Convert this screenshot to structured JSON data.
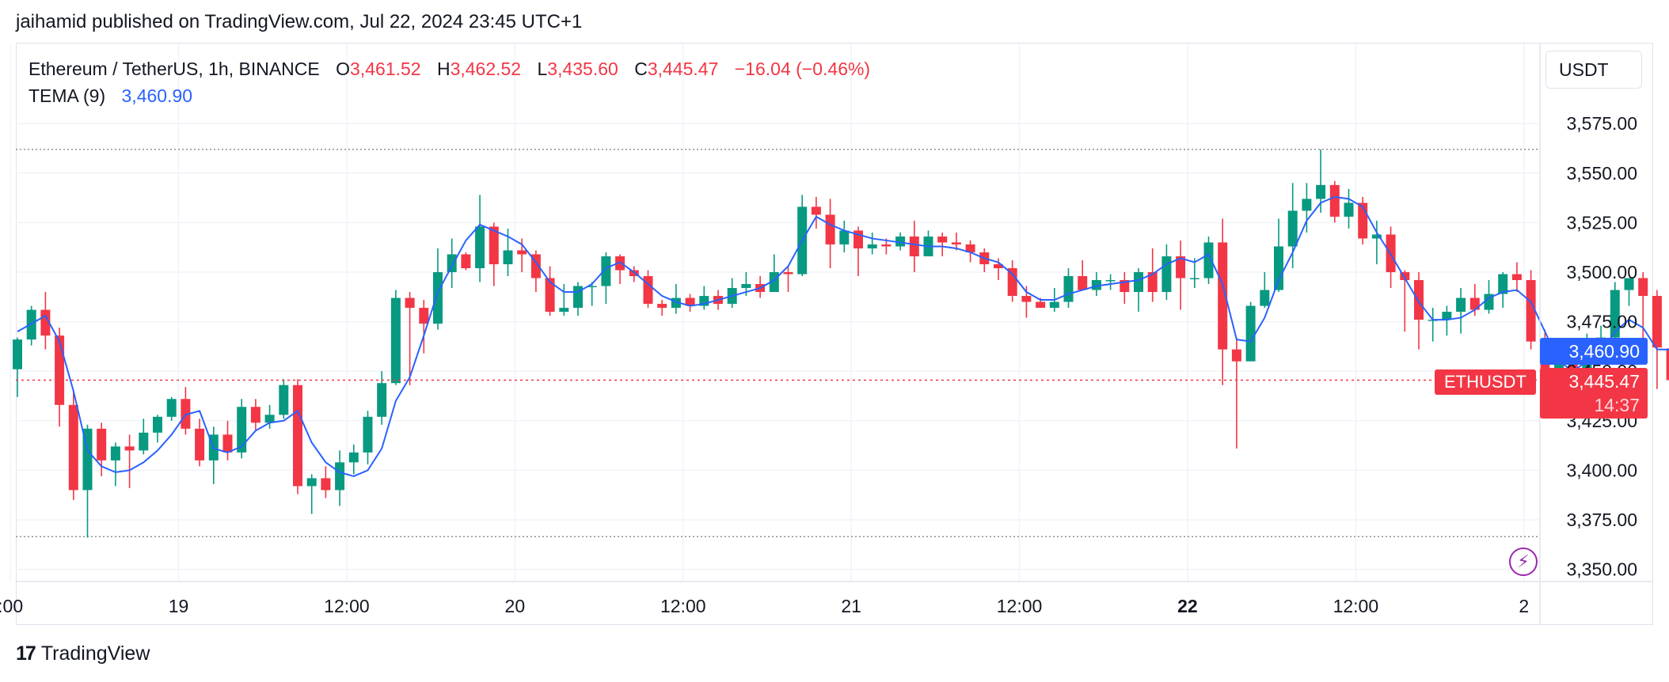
{
  "publisher_line": "jaihamid published on TradingView.com, Jul 22, 2024 23:45 UTC+1",
  "legend": {
    "symbol": "Ethereum / TetherUS, 1h, BINANCE",
    "o_label": "O",
    "o_value": "3,461.52",
    "h_label": "H",
    "h_value": "3,462.52",
    "l_label": "L",
    "l_value": "3,435.60",
    "c_label": "C",
    "c_value": "3,445.47",
    "change": "−16.04 (−0.46%)",
    "indicator_name": "TEMA (9)",
    "indicator_value": "3,460.90"
  },
  "currency": "USDT",
  "tags": {
    "tema_value": "3,460.90",
    "last_price": "3,445.47",
    "countdown": "14:37",
    "symbol": "ETHUSDT"
  },
  "brand": "TradingView",
  "icons": {
    "brand_logo": "tradingview-logo-icon",
    "alert": "lightning-bolt-icon"
  },
  "colors": {
    "up": "#089981",
    "down": "#f23645",
    "tema": "#2962ff",
    "grid": "#f0f3fa"
  },
  "chart_data": {
    "type": "candlestick",
    "interval": "1h",
    "y_ticks": [
      "3,575.00",
      "3,550.00",
      "3,525.00",
      "3,500.00",
      "3,475.00",
      "3,450.00",
      "3,425.00",
      "3,400.00",
      "3,375.00",
      "3,350.00"
    ],
    "y_tick_values": [
      3575,
      3550,
      3525,
      3500,
      3475,
      3450,
      3425,
      3400,
      3375,
      3350
    ],
    "x_ticks": [
      {
        "label": ":00",
        "slot": -0.5,
        "bold": false
      },
      {
        "label": "19",
        "slot": 11.5,
        "bold": false
      },
      {
        "label": "12:00",
        "slot": 23.5,
        "bold": false
      },
      {
        "label": "20",
        "slot": 35.5,
        "bold": false
      },
      {
        "label": "12:00",
        "slot": 47.5,
        "bold": false
      },
      {
        "label": "21",
        "slot": 59.5,
        "bold": false
      },
      {
        "label": "12:00",
        "slot": 71.5,
        "bold": false
      },
      {
        "label": "22",
        "slot": 83.5,
        "bold": true
      },
      {
        "label": "12:00",
        "slot": 95.5,
        "bold": false
      },
      {
        "label": "2",
        "slot": 107.5,
        "bold": false
      }
    ],
    "high_line": 3562,
    "low_line": 3366.5,
    "last_price": 3445.47,
    "tema_last": 3460.9,
    "candles": [
      [
        3451,
        3466,
        3437,
        3467
      ],
      [
        3466,
        3481,
        3463,
        3483
      ],
      [
        3481,
        3468,
        3461,
        3490
      ],
      [
        3468,
        3433,
        3422,
        3472
      ],
      [
        3433,
        3390,
        3385,
        3440
      ],
      [
        3390,
        3421,
        3366,
        3423
      ],
      [
        3421,
        3405,
        3397,
        3424
      ],
      [
        3405,
        3412,
        3392,
        3414
      ],
      [
        3412,
        3410,
        3391,
        3418
      ],
      [
        3410,
        3419,
        3408,
        3426
      ],
      [
        3419,
        3427,
        3414,
        3428
      ],
      [
        3427,
        3436,
        3425,
        3437
      ],
      [
        3436,
        3421,
        3418,
        3442
      ],
      [
        3421,
        3405,
        3402,
        3426
      ],
      [
        3405,
        3418,
        3393,
        3422
      ],
      [
        3418,
        3409,
        3405,
        3425
      ],
      [
        3409,
        3432,
        3406,
        3436
      ],
      [
        3432,
        3424,
        3420,
        3436
      ],
      [
        3424,
        3428,
        3421,
        3433
      ],
      [
        3428,
        3443,
        3426,
        3446
      ],
      [
        3443,
        3392,
        3388,
        3446
      ],
      [
        3392,
        3396,
        3378,
        3398
      ],
      [
        3396,
        3390,
        3386,
        3402
      ],
      [
        3390,
        3404,
        3382,
        3410
      ],
      [
        3404,
        3409,
        3398,
        3413
      ],
      [
        3409,
        3427,
        3403,
        3430
      ],
      [
        3427,
        3444,
        3423,
        3450
      ],
      [
        3444,
        3487,
        3443,
        3491
      ],
      [
        3487,
        3482,
        3443,
        3490
      ],
      [
        3482,
        3474,
        3459,
        3486
      ],
      [
        3474,
        3500,
        3471,
        3512
      ],
      [
        3500,
        3509,
        3492,
        3517
      ],
      [
        3509,
        3502,
        3501,
        3510
      ],
      [
        3502,
        3523,
        3495,
        3539
      ],
      [
        3523,
        3504,
        3493,
        3525
      ],
      [
        3504,
        3511,
        3498,
        3522
      ],
      [
        3511,
        3509,
        3500,
        3517
      ],
      [
        3509,
        3497,
        3490,
        3511
      ],
      [
        3497,
        3480,
        3478,
        3503
      ],
      [
        3480,
        3482,
        3478,
        3494
      ],
      [
        3482,
        3493,
        3478,
        3495
      ],
      [
        3493,
        3493,
        3483,
        3495
      ],
      [
        3493,
        3508,
        3484,
        3510
      ],
      [
        3508,
        3501,
        3494,
        3509
      ],
      [
        3501,
        3498,
        3495,
        3503
      ],
      [
        3498,
        3484,
        3482,
        3501
      ],
      [
        3484,
        3482,
        3478,
        3486
      ],
      [
        3482,
        3487,
        3479,
        3494
      ],
      [
        3487,
        3483,
        3480,
        3489
      ],
      [
        3483,
        3488,
        3481,
        3493
      ],
      [
        3488,
        3484,
        3481,
        3491
      ],
      [
        3484,
        3492,
        3482,
        3497
      ],
      [
        3492,
        3494,
        3488,
        3500
      ],
      [
        3494,
        3490,
        3487,
        3498
      ],
      [
        3490,
        3500,
        3490,
        3509
      ],
      [
        3500,
        3499,
        3490,
        3503
      ],
      [
        3499,
        3533,
        3498,
        3539
      ],
      [
        3533,
        3529,
        3522,
        3538
      ],
      [
        3529,
        3514,
        3502,
        3537
      ],
      [
        3514,
        3521,
        3510,
        3526
      ],
      [
        3521,
        3512,
        3498,
        3523
      ],
      [
        3512,
        3514,
        3509,
        3520
      ],
      [
        3514,
        3513,
        3509,
        3517
      ],
      [
        3513,
        3518,
        3511,
        3520
      ],
      [
        3518,
        3508,
        3500,
        3526
      ],
      [
        3508,
        3518,
        3508,
        3521
      ],
      [
        3518,
        3515,
        3508,
        3520
      ],
      [
        3515,
        3514,
        3511,
        3520
      ],
      [
        3514,
        3510,
        3505,
        3516
      ],
      [
        3510,
        3504,
        3500,
        3512
      ],
      [
        3504,
        3502,
        3496,
        3507
      ],
      [
        3502,
        3488,
        3485,
        3506
      ],
      [
        3488,
        3485,
        3477,
        3493
      ],
      [
        3485,
        3482,
        3482,
        3487
      ],
      [
        3482,
        3485,
        3480,
        3492
      ],
      [
        3485,
        3498,
        3482,
        3502
      ],
      [
        3498,
        3491,
        3491,
        3506
      ],
      [
        3491,
        3496,
        3488,
        3500
      ],
      [
        3496,
        3496,
        3491,
        3499
      ],
      [
        3496,
        3490,
        3484,
        3500
      ],
      [
        3490,
        3500,
        3480,
        3502
      ],
      [
        3500,
        3490,
        3485,
        3512
      ],
      [
        3490,
        3508,
        3486,
        3514
      ],
      [
        3508,
        3497,
        3481,
        3516
      ],
      [
        3497,
        3497,
        3492,
        3507
      ],
      [
        3497,
        3515,
        3494,
        3518
      ],
      [
        3515,
        3461,
        3443,
        3527
      ],
      [
        3461,
        3455,
        3411,
        3467
      ],
      [
        3455,
        3483,
        3455,
        3485
      ],
      [
        3483,
        3491,
        3482,
        3500
      ],
      [
        3491,
        3513,
        3490,
        3527
      ],
      [
        3513,
        3531,
        3502,
        3545
      ],
      [
        3531,
        3537,
        3520,
        3545
      ],
      [
        3537,
        3544,
        3530,
        3562
      ],
      [
        3544,
        3528,
        3525,
        3546
      ],
      [
        3528,
        3535,
        3522,
        3542
      ],
      [
        3535,
        3517,
        3514,
        3538
      ],
      [
        3517,
        3519,
        3504,
        3526
      ],
      [
        3519,
        3500,
        3492,
        3523
      ],
      [
        3500,
        3496,
        3470,
        3501
      ],
      [
        3496,
        3476,
        3461,
        3500
      ],
      [
        3476,
        3476,
        3465,
        3482
      ],
      [
        3476,
        3480,
        3468,
        3483
      ],
      [
        3480,
        3487,
        3469,
        3492
      ],
      [
        3487,
        3481,
        3478,
        3494
      ],
      [
        3481,
        3489,
        3479,
        3496
      ],
      [
        3489,
        3499,
        3482,
        3500
      ],
      [
        3499,
        3496,
        3490,
        3505
      ],
      [
        3496,
        3465,
        3461,
        3501
      ],
      [
        3465,
        3446,
        3438,
        3471
      ],
      [
        3446,
        3455,
        3437,
        3458
      ],
      [
        3455,
        3446,
        3445,
        3463
      ],
      [
        3446,
        3463,
        3446,
        3469
      ],
      [
        3463,
        3467,
        3462,
        3473
      ],
      [
        3467,
        3491,
        3463,
        3495
      ],
      [
        3491,
        3497,
        3483,
        3497
      ],
      [
        3497,
        3488,
        3458,
        3500
      ],
      [
        3488,
        3462,
        3441,
        3491
      ],
      [
        3461.52,
        3445.47,
        3435.6,
        3462.52
      ]
    ],
    "tema": [
      3470,
      3474,
      3478,
      3465,
      3440,
      3410,
      3402,
      3399,
      3400,
      3404,
      3410,
      3418,
      3428,
      3430,
      3411,
      3409,
      3412,
      3420,
      3424,
      3425,
      3430,
      3414,
      3404,
      3399,
      3397,
      3400,
      3411,
      3435,
      3447,
      3468,
      3490,
      3503,
      3516,
      3524,
      3521,
      3518,
      3514,
      3505,
      3495,
      3490,
      3490,
      3494,
      3502,
      3505,
      3500,
      3494,
      3488,
      3485,
      3483,
      3484,
      3486,
      3488,
      3490,
      3492,
      3496,
      3503,
      3516,
      3528,
      3524,
      3521,
      3519,
      3517,
      3516,
      3515,
      3514,
      3513,
      3513,
      3512,
      3510,
      3507,
      3505,
      3499,
      3490,
      3486,
      3486,
      3489,
      3491,
      3493,
      3494,
      3495,
      3496,
      3499,
      3504,
      3507,
      3505,
      3509,
      3494,
      3466,
      3465,
      3477,
      3496,
      3510,
      3526,
      3535,
      3538,
      3537,
      3533,
      3520,
      3509,
      3497,
      3485,
      3476,
      3476,
      3477,
      3481,
      3487,
      3490,
      3491,
      3485,
      3470,
      3455,
      3450,
      3455,
      3459,
      3470,
      3476,
      3472,
      3461,
      3460.9
    ]
  }
}
